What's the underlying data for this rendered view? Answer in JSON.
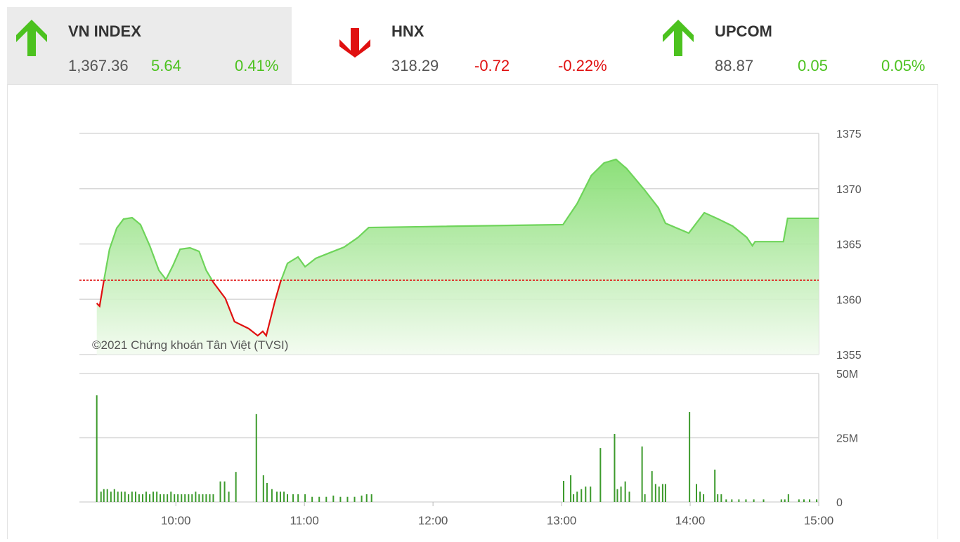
{
  "header": {
    "indices": [
      {
        "name": "VN INDEX",
        "value": "1,367.36",
        "change": "5.64",
        "percent": "0.41%"
      },
      {
        "name": "HNX",
        "value": "318.29",
        "change": "-0.72",
        "percent": "-0.22%"
      },
      {
        "name": "UPCOM",
        "value": "88.87",
        "change": "0.05",
        "percent": "0.05%"
      }
    ]
  },
  "chart_data": [
    {
      "type": "line",
      "annotation": "©2021 Chứng khoán Tân Việt (TVSI)",
      "x": [
        9.385,
        9.407,
        9.44,
        9.484,
        9.54,
        9.593,
        9.66,
        9.725,
        9.797,
        9.868,
        9.923,
        9.978,
        10.033,
        10.11,
        10.181,
        10.236,
        10.291,
        10.385,
        10.456,
        10.566,
        10.637,
        10.676,
        10.703,
        10.769,
        10.813,
        10.868,
        10.95,
        11.005,
        11.088,
        11.198,
        11.308,
        11.418,
        11.5,
        11.912,
        13.011,
        13.121,
        13.231,
        13.33,
        13.423,
        13.505,
        13.643,
        13.753,
        13.808,
        13.989,
        14.11,
        14.22,
        14.33,
        14.44,
        14.484,
        14.505,
        14.725,
        14.758,
        15.0
      ],
      "values": [
        1359.64,
        1359.38,
        1361.67,
        1364.52,
        1366.43,
        1367.25,
        1367.38,
        1366.75,
        1364.84,
        1362.62,
        1361.79,
        1363.06,
        1364.52,
        1364.65,
        1364.33,
        1362.62,
        1361.54,
        1360.08,
        1357.98,
        1357.35,
        1356.71,
        1357.1,
        1356.71,
        1359.76,
        1361.54,
        1363.25,
        1363.83,
        1362.94,
        1363.7,
        1364.21,
        1364.71,
        1365.6,
        1366.49,
        1366.56,
        1366.75,
        1368.65,
        1371.19,
        1372.33,
        1372.65,
        1371.83,
        1369.92,
        1368.27,
        1366.87,
        1365.98,
        1367.83,
        1367.25,
        1366.62,
        1365.6,
        1364.84,
        1365.21,
        1365.21,
        1367.32,
        1367.32
      ],
      "reference": 1361.72,
      "color_above": "#6ed45a",
      "color_below": "#e01010",
      "reference_color": "#e01010",
      "xlim": [
        9.25,
        15
      ],
      "ylim": [
        1355,
        1375
      ],
      "yticks": [
        1355,
        1360,
        1365,
        1370,
        1375
      ],
      "grid": true
    },
    {
      "type": "bar",
      "x": [
        9.385,
        9.418,
        9.44,
        9.467,
        9.495,
        9.522,
        9.549,
        9.577,
        9.604,
        9.632,
        9.659,
        9.687,
        9.714,
        9.742,
        9.769,
        9.797,
        9.824,
        9.852,
        9.879,
        9.907,
        9.934,
        9.962,
        9.989,
        10.016,
        10.044,
        10.071,
        10.099,
        10.126,
        10.154,
        10.181,
        10.209,
        10.236,
        10.264,
        10.291,
        10.346,
        10.379,
        10.412,
        10.467,
        10.626,
        10.681,
        10.709,
        10.747,
        10.786,
        10.813,
        10.841,
        10.868,
        10.912,
        10.951,
        11.005,
        11.06,
        11.115,
        11.17,
        11.225,
        11.28,
        11.335,
        11.39,
        11.445,
        11.484,
        11.522,
        13.016,
        13.071,
        13.093,
        13.121,
        13.154,
        13.187,
        13.225,
        13.302,
        13.412,
        13.434,
        13.462,
        13.495,
        13.527,
        13.626,
        13.648,
        13.703,
        13.731,
        13.758,
        13.786,
        13.808,
        13.995,
        14.049,
        14.077,
        14.104,
        14.192,
        14.214,
        14.242,
        14.28,
        14.324,
        14.379,
        14.434,
        14.495,
        14.571,
        14.709,
        14.736,
        14.764,
        14.846,
        14.885,
        14.929,
        14.984
      ],
      "values": [
        41.5,
        4,
        5,
        5,
        4,
        5,
        4,
        4,
        4,
        3,
        4,
        4,
        3,
        3,
        4,
        3,
        4,
        4,
        3,
        3,
        3,
        4,
        3,
        3,
        3,
        3,
        3,
        3,
        4,
        3,
        3,
        3,
        3,
        3,
        8,
        8,
        4,
        11.7,
        34.2,
        10.4,
        7.4,
        5,
        4,
        4,
        4,
        3,
        3,
        3,
        3,
        2,
        2,
        2,
        2.5,
        2,
        2,
        2,
        2.5,
        3,
        3,
        8.2,
        10.4,
        3,
        4,
        5,
        6,
        6,
        21,
        26.5,
        5,
        6,
        8,
        4,
        21.6,
        3,
        12,
        7,
        6,
        7,
        7,
        35,
        7,
        4,
        3,
        12.6,
        3,
        3,
        1,
        1,
        1,
        1,
        1,
        1,
        1,
        1,
        3,
        1,
        1,
        1,
        1
      ],
      "color": "#3c9a2c",
      "xlim": [
        9.25,
        15
      ],
      "xticks": [
        {
          "value": 10,
          "label": "10:00"
        },
        {
          "value": 11,
          "label": "11:00"
        },
        {
          "value": 12,
          "label": "12:00"
        },
        {
          "value": 13,
          "label": "13:00"
        },
        {
          "value": 14,
          "label": "14:00"
        },
        {
          "value": 15,
          "label": "15:00"
        }
      ],
      "ylim": [
        0,
        50
      ],
      "yticks": [
        0,
        {
          "value": 25,
          "label": "25M"
        },
        {
          "value": 50,
          "label": "50M"
        }
      ],
      "grid": true
    }
  ]
}
